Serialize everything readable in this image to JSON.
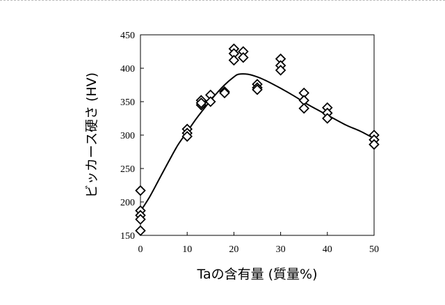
{
  "chart_data": {
    "type": "scatter",
    "title": "",
    "xlabel": "Taの含有量 (質量%)",
    "ylabel": "ビッカース硬さ (HV)",
    "xlim": [
      0,
      50
    ],
    "ylim": [
      150,
      450
    ],
    "x_ticks": [
      "0",
      "10",
      "20",
      "30",
      "40",
      "50"
    ],
    "y_ticks": [
      "150",
      "200",
      "250",
      "300",
      "350",
      "400",
      "450"
    ],
    "grid": false,
    "legend": "none",
    "marker": "open-diamond",
    "colors": {
      "marker": "#000000",
      "line": "#000000",
      "axis": "#000000"
    },
    "series": [
      {
        "type": "scatter",
        "points": [
          [
            0,
            217
          ],
          [
            0,
            187
          ],
          [
            0,
            180
          ],
          [
            0,
            174
          ],
          [
            0,
            157
          ],
          [
            10,
            309
          ],
          [
            10,
            303
          ],
          [
            10,
            298
          ],
          [
            13,
            352
          ],
          [
            13,
            345
          ],
          [
            13,
            348
          ],
          [
            15,
            360
          ],
          [
            15,
            350
          ],
          [
            18,
            365
          ],
          [
            18,
            363
          ],
          [
            20,
            429
          ],
          [
            20,
            422
          ],
          [
            20,
            412
          ],
          [
            22,
            425
          ],
          [
            22,
            416
          ],
          [
            25,
            376
          ],
          [
            25,
            371
          ],
          [
            25,
            368
          ],
          [
            30,
            414
          ],
          [
            30,
            404
          ],
          [
            30,
            397
          ],
          [
            35,
            363
          ],
          [
            35,
            352
          ],
          [
            35,
            340
          ],
          [
            40,
            341
          ],
          [
            40,
            333
          ],
          [
            40,
            325
          ],
          [
            50,
            300
          ],
          [
            50,
            293
          ],
          [
            50,
            286
          ]
        ]
      },
      {
        "type": "line",
        "points": [
          [
            0,
            186
          ],
          [
            2,
            208
          ],
          [
            4,
            234
          ],
          [
            6,
            260
          ],
          [
            8,
            285
          ],
          [
            10,
            305
          ],
          [
            12,
            325
          ],
          [
            14,
            343
          ],
          [
            16,
            360
          ],
          [
            18,
            375
          ],
          [
            20,
            387
          ],
          [
            21,
            391
          ],
          [
            23,
            391
          ],
          [
            25,
            387
          ],
          [
            27,
            381
          ],
          [
            30,
            370
          ],
          [
            33,
            358
          ],
          [
            36,
            345
          ],
          [
            40,
            330
          ],
          [
            44,
            315
          ],
          [
            47,
            306
          ],
          [
            50,
            295
          ]
        ]
      }
    ]
  }
}
